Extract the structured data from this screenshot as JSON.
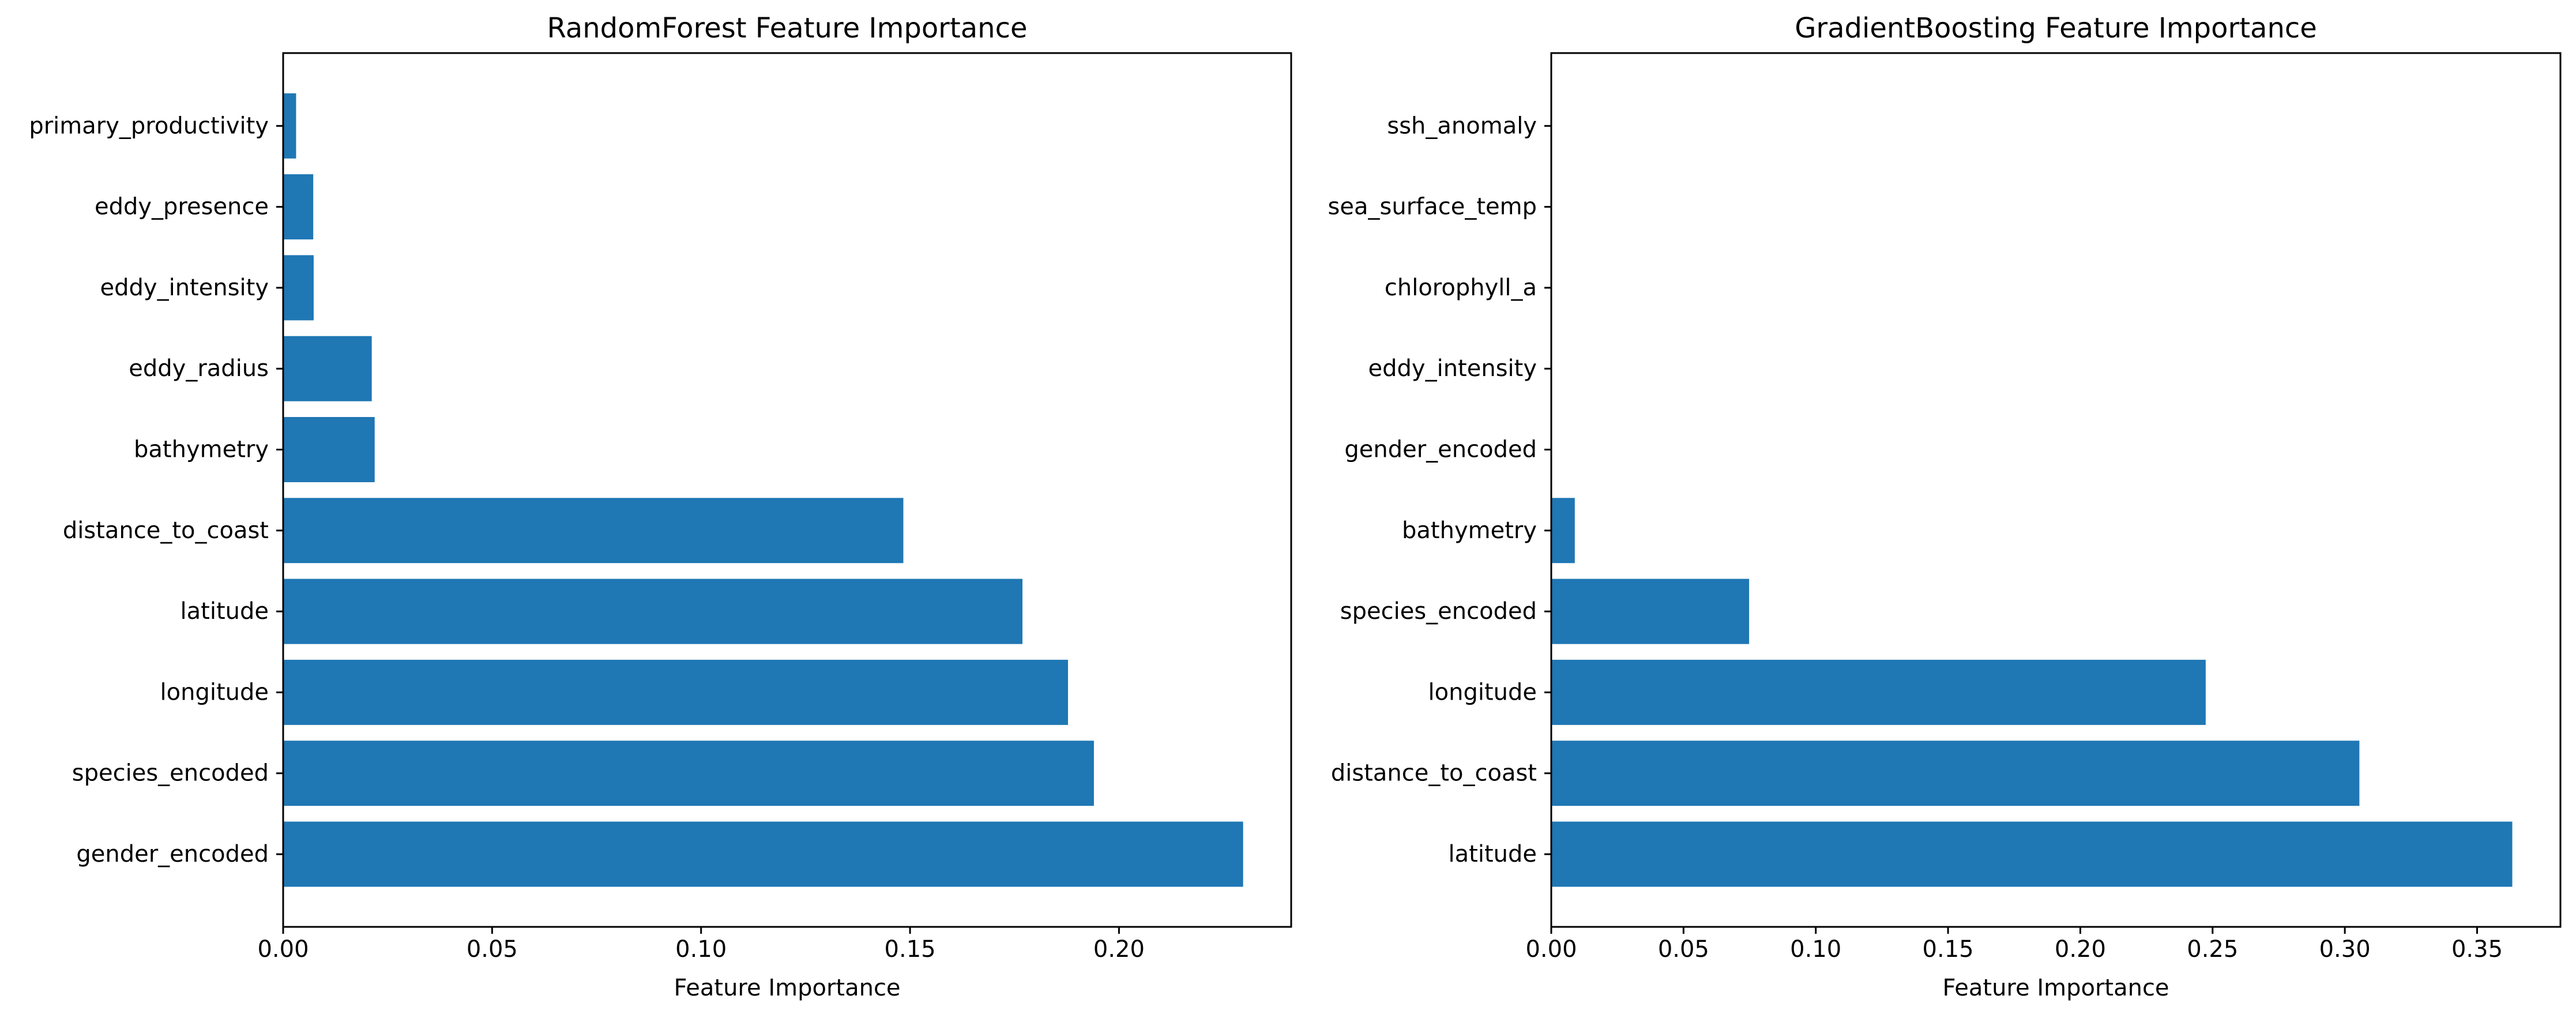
{
  "chart_data": [
    {
      "type": "bar",
      "orientation": "horizontal",
      "title": "RandomForest Feature Importance",
      "xlabel": "Feature Importance",
      "ylabel": "",
      "xlim": [
        0,
        0.2412
      ],
      "xticks": [
        "0.00",
        "0.05",
        "0.10",
        "0.15",
        "0.20"
      ],
      "bar_color": "#1f77b4",
      "categories": [
        "gender_encoded",
        "species_encoded",
        "longitude",
        "latitude",
        "distance_to_coast",
        "bathymetry",
        "eddy_radius",
        "eddy_intensity",
        "eddy_presence",
        "primary_productivity"
      ],
      "values": [
        0.2297,
        0.194,
        0.1878,
        0.1769,
        0.1484,
        0.0219,
        0.0212,
        0.0073,
        0.0072,
        0.0031
      ]
    },
    {
      "type": "bar",
      "orientation": "horizontal",
      "title": "GradientBoosting Feature Importance",
      "xlabel": "Feature Importance",
      "ylabel": "",
      "xlim": [
        0,
        0.3815
      ],
      "xticks": [
        "0.00",
        "0.05",
        "0.10",
        "0.15",
        "0.20",
        "0.25",
        "0.30",
        "0.35"
      ],
      "bar_color": "#1f77b4",
      "categories": [
        "latitude",
        "distance_to_coast",
        "longitude",
        "species_encoded",
        "bathymetry",
        "gender_encoded",
        "eddy_intensity",
        "chlorophyll_a",
        "sea_surface_temp",
        "ssh_anomaly"
      ],
      "values": [
        0.3633,
        0.3055,
        0.2474,
        0.0748,
        0.0089,
        0.0,
        0.0,
        0.0,
        0.0,
        0.0
      ]
    }
  ]
}
